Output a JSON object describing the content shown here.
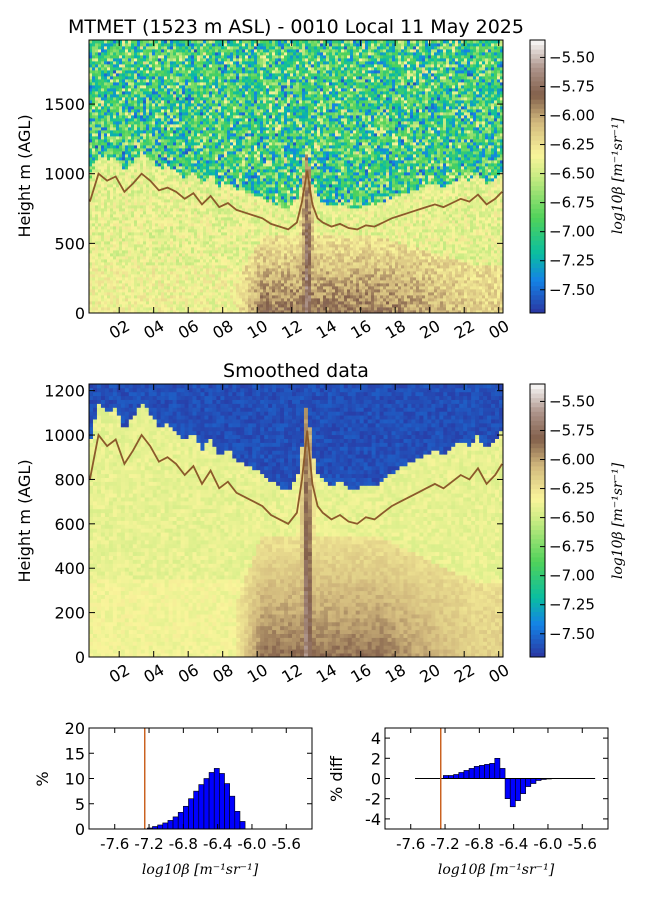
{
  "chart_data": [
    {
      "type": "heatmap",
      "title": "MTMET (1523 m ASL) - 0010 Local 11 May 2025",
      "ylabel": "Height m (AGL)",
      "xlabel": "",
      "x_tick_labels": [
        "02",
        "04",
        "06",
        "08",
        "10",
        "12",
        "14",
        "16",
        "18",
        "20",
        "22",
        "00"
      ],
      "x_hours": [
        2,
        4,
        6,
        8,
        10,
        12,
        14,
        16,
        18,
        20,
        22,
        24
      ],
      "xlim_hours": [
        0.25,
        24.25
      ],
      "y_ticks": [
        0,
        500,
        1000,
        1500
      ],
      "ylim": [
        0,
        1960
      ],
      "colorbar": {
        "label": "log10β [m⁻¹sr⁻¹]",
        "ticks": [
          -7.5,
          -7.25,
          -7.0,
          -6.75,
          -6.5,
          -6.25,
          -6.0,
          -5.75,
          -5.5
        ],
        "tick_labels": [
          "−7.50",
          "−7.25",
          "−7.00",
          "−6.75",
          "−6.50",
          "−6.25",
          "−6.00",
          "−5.75",
          "−5.50"
        ],
        "range": [
          -7.7,
          -5.35
        ]
      },
      "series": [
        {
          "x": [
            0.3,
            0.8,
            1.3,
            1.8,
            2.3,
            2.8,
            3.3,
            3.8,
            4.3,
            4.8,
            5.3,
            5.8,
            6.3,
            6.8,
            7.3,
            7.8,
            8.3,
            8.8,
            9.3,
            9.8,
            10.3,
            10.8,
            11.3,
            11.8,
            12.3,
            12.6,
            12.9,
            13.2,
            13.5,
            13.8,
            14.3,
            14.8,
            15.3,
            15.8,
            16.3,
            16.8,
            17.3,
            17.8,
            18.3,
            18.8,
            19.3,
            19.8,
            20.3,
            20.8,
            21.3,
            21.8,
            22.3,
            22.8,
            23.3,
            23.8,
            24.2
          ],
          "y": [
            800,
            1000,
            950,
            980,
            870,
            930,
            1000,
            950,
            880,
            900,
            870,
            820,
            860,
            780,
            840,
            760,
            790,
            740,
            720,
            700,
            680,
            640,
            620,
            600,
            650,
            800,
            1020,
            780,
            680,
            650,
            620,
            640,
            610,
            600,
            630,
            620,
            650,
            680,
            700,
            720,
            740,
            760,
            780,
            760,
            790,
            820,
            800,
            850,
            780,
            820,
            870
          ]
        }
      ]
    },
    {
      "type": "heatmap",
      "title": "Smoothed data",
      "ylabel": "Height m (AGL)",
      "xlabel": "",
      "x_tick_labels": [
        "02",
        "04",
        "06",
        "08",
        "10",
        "12",
        "14",
        "16",
        "18",
        "20",
        "22",
        "00"
      ],
      "x_hours": [
        2,
        4,
        6,
        8,
        10,
        12,
        14,
        16,
        18,
        20,
        22,
        24
      ],
      "xlim_hours": [
        0.25,
        24.25
      ],
      "y_ticks": [
        0,
        200,
        400,
        600,
        800,
        1000,
        1200
      ],
      "ylim": [
        0,
        1230
      ],
      "colorbar": {
        "label": "log10β [m⁻¹sr⁻¹]",
        "ticks": [
          -7.5,
          -7.25,
          -7.0,
          -6.75,
          -6.5,
          -6.25,
          -6.0,
          -5.75,
          -5.5
        ],
        "tick_labels": [
          "−7.50",
          "−7.25",
          "−7.00",
          "−6.75",
          "−6.50",
          "−6.25",
          "−6.00",
          "−5.75",
          "−5.50"
        ],
        "range": [
          -7.7,
          -5.35
        ]
      },
      "series": [
        {
          "x": [
            0.3,
            0.8,
            1.3,
            1.8,
            2.3,
            2.8,
            3.3,
            3.8,
            4.3,
            4.8,
            5.3,
            5.8,
            6.3,
            6.8,
            7.3,
            7.8,
            8.3,
            8.8,
            9.3,
            9.8,
            10.3,
            10.8,
            11.3,
            11.8,
            12.3,
            12.6,
            12.9,
            13.2,
            13.5,
            13.8,
            14.3,
            14.8,
            15.3,
            15.8,
            16.3,
            16.8,
            17.3,
            17.8,
            18.3,
            18.8,
            19.3,
            19.8,
            20.3,
            20.8,
            21.3,
            21.8,
            22.3,
            22.8,
            23.3,
            23.8,
            24.2
          ],
          "y": [
            800,
            1000,
            950,
            980,
            870,
            930,
            1000,
            950,
            880,
            900,
            870,
            820,
            860,
            780,
            840,
            760,
            790,
            740,
            720,
            700,
            680,
            640,
            620,
            600,
            650,
            800,
            1020,
            780,
            680,
            650,
            620,
            640,
            610,
            600,
            630,
            620,
            650,
            680,
            700,
            720,
            740,
            760,
            780,
            760,
            790,
            820,
            800,
            850,
            780,
            820,
            870
          ]
        }
      ]
    },
    {
      "type": "bar",
      "title": "",
      "xlabel": "log10β [m⁻¹sr⁻¹]",
      "ylabel": "%",
      "x_tick_labels": [
        "-7.6",
        "-7.2",
        "-6.8",
        "-6.4",
        "-6.0",
        "-5.6"
      ],
      "xlim": [
        -7.9,
        -5.3
      ],
      "ylim": [
        0,
        20
      ],
      "y_ticks": [
        0,
        5,
        10,
        15,
        20
      ],
      "threshold": -7.25,
      "bin_centers": [
        -7.19,
        -7.13,
        -7.07,
        -7.01,
        -6.95,
        -6.89,
        -6.83,
        -6.77,
        -6.71,
        -6.65,
        -6.59,
        -6.53,
        -6.47,
        -6.41,
        -6.35,
        -6.29,
        -6.23,
        -6.17,
        -6.11
      ],
      "values": [
        0.2,
        0.5,
        0.8,
        1.2,
        1.7,
        2.4,
        3.3,
        4.5,
        6.0,
        7.5,
        8.8,
        10.0,
        11.2,
        12.0,
        11.0,
        9.0,
        6.5,
        3.5,
        1.5
      ]
    },
    {
      "type": "bar",
      "title": "",
      "xlabel": "log10β [m⁻¹sr⁻¹]",
      "ylabel": "% diff",
      "x_tick_labels": [
        "-7.6",
        "-7.2",
        "-6.8",
        "-6.4",
        "-6.0",
        "-5.6"
      ],
      "xlim": [
        -7.9,
        -5.3
      ],
      "ylim": [
        -5,
        5
      ],
      "y_ticks": [
        -4,
        -2,
        0,
        2,
        4
      ],
      "threshold": -7.25,
      "bin_centers": [
        -7.19,
        -7.13,
        -7.07,
        -7.01,
        -6.95,
        -6.89,
        -6.83,
        -6.77,
        -6.71,
        -6.65,
        -6.59,
        -6.53,
        -6.47,
        -6.41,
        -6.35,
        -6.29,
        -6.23,
        -6.17,
        -6.11,
        -6.05,
        -5.99
      ],
      "values": [
        0.3,
        0.3,
        0.4,
        0.6,
        0.8,
        1.0,
        1.2,
        1.3,
        1.4,
        1.5,
        2.0,
        1.0,
        -2.0,
        -2.8,
        -2.2,
        -1.5,
        -0.8,
        -0.5,
        -0.2,
        -0.1,
        -0.05
      ]
    }
  ]
}
